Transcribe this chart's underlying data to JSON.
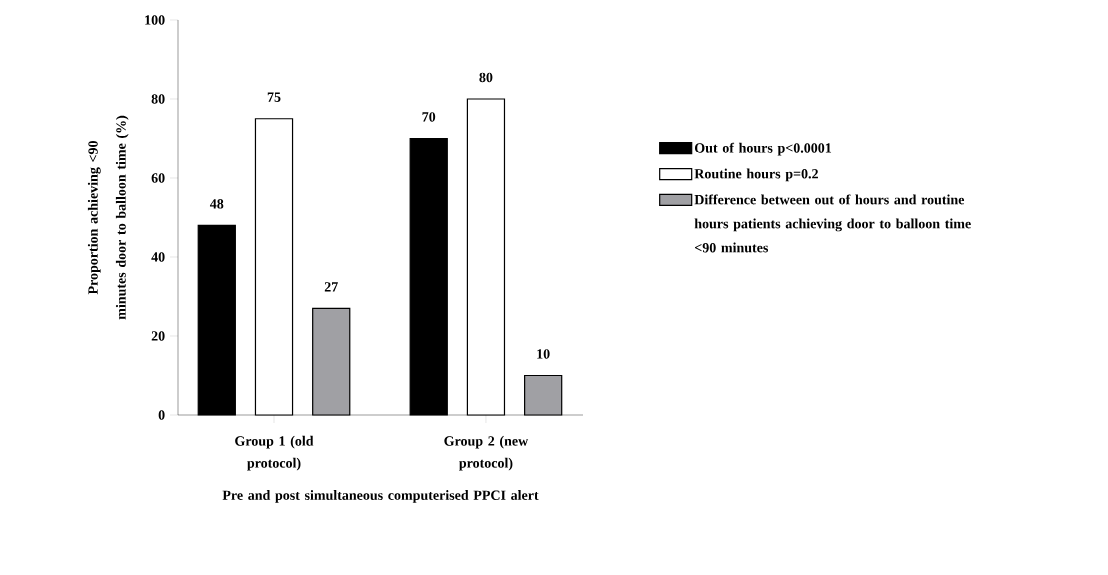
{
  "chart_data": {
    "type": "bar",
    "ylabel": "Proportion achieving <90 minutes door to balloon time (%)",
    "xlabel": "Pre and post simultaneous computerised PPCI alert",
    "categories": [
      "Group 1 (old protocol)",
      "Group 2 (new protocol)"
    ],
    "series": [
      {
        "name": "Out of hours p<0.0001",
        "color": "#000000",
        "values": [
          48,
          70
        ]
      },
      {
        "name": "Routine hours p=0.2",
        "color": "#ffffff",
        "values": [
          75,
          80
        ]
      },
      {
        "name": "Difference between out of hours and routine hours patients achieving door to balloon time <90 minutes",
        "color": "#a0a0a4",
        "values": [
          27,
          10
        ]
      }
    ],
    "ylim": [
      0,
      100
    ],
    "yticks": [
      0,
      20,
      40,
      60,
      80,
      100
    ],
    "data_labels": true,
    "legend": "right",
    "grid": false
  }
}
